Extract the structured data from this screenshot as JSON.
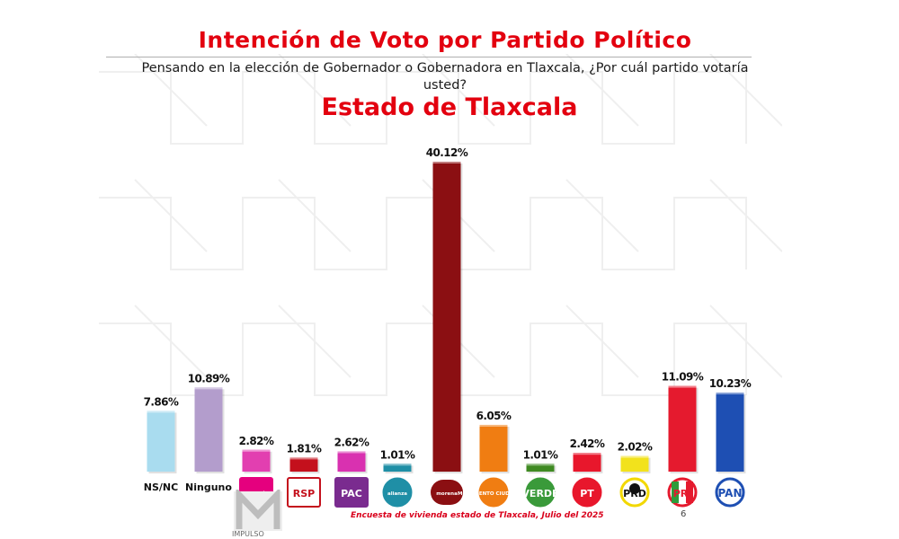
{
  "header": {
    "title": "Intención de Voto por Partido Político",
    "question": "Pensando en la elección de Gobernador o Gobernadora en Tlaxcala, ¿Por cuál partido votaría usted?",
    "subtitle": "Estado de Tlaxcala"
  },
  "chart_data": {
    "type": "bar",
    "title": "Intención de Voto por Partido Político",
    "subtitle": "Estado de Tlaxcala",
    "categories": [
      "NS/NC",
      "Ninguno",
      "Fuerza México",
      "RSP",
      "PAC",
      "Alianza",
      "morena",
      "Movimiento Ciudadano",
      "Verde",
      "PT",
      "PRD",
      "PRI",
      "PAN"
    ],
    "values": [
      7.86,
      10.89,
      2.82,
      1.81,
      2.62,
      1.01,
      40.12,
      6.05,
      1.01,
      2.42,
      2.02,
      11.09,
      10.23
    ],
    "value_labels": [
      "7.86%",
      "10.89%",
      "2.82%",
      "1.81%",
      "2.62%",
      "1.01%",
      "40.12%",
      "6.05%",
      "1.01%",
      "2.42%",
      "2.02%",
      "11.09%",
      "10.23%"
    ],
    "ylim": [
      0,
      40.12
    ],
    "grid": false,
    "bar_colors": [
      "#a9dcef",
      "#b39dcc",
      "#e23fb0",
      "#c4101c",
      "#d931b0",
      "#1f8fa6",
      "#8b0f12",
      "#f07d12",
      "#3f8a22",
      "#e8172c",
      "#f2e21c",
      "#e51a2e",
      "#1e4fb3"
    ]
  },
  "axis_labels": {
    "ns_nc": "NS/NC",
    "ninguno": "Ninguno"
  },
  "logos": [
    {
      "party": "Fuerza México",
      "text": "FUERZA MÉXICO",
      "color": "#e5007e"
    },
    {
      "party": "RSP",
      "text": "RSP",
      "color": "#c4101c"
    },
    {
      "party": "PAC",
      "text": "PAC",
      "color": "#7a2b8f"
    },
    {
      "party": "Alianza",
      "text": "alianza",
      "color": "#1f8fa6"
    },
    {
      "party": "morena",
      "text": "morena",
      "color": "#8b0f12"
    },
    {
      "party": "Movimiento Ciudadano",
      "text": "MOVIMIENTO CIUDADANO",
      "color": "#f07d12"
    },
    {
      "party": "Verde",
      "text": "VERDE",
      "color": "#3a9a3a"
    },
    {
      "party": "PT",
      "text": "PT",
      "color": "#e8172c"
    },
    {
      "party": "PRD",
      "text": "PRD",
      "color": "#f2d800"
    },
    {
      "party": "PRI",
      "text": "PRI",
      "color": "#e51a2e"
    },
    {
      "party": "PAN",
      "text": "PAN",
      "color": "#1e4fb3"
    }
  ],
  "footer": {
    "source": "Encuesta de vivienda estado de Tlaxcala, Julio  del 2025",
    "page": "6",
    "brand": "IMPULSO"
  }
}
